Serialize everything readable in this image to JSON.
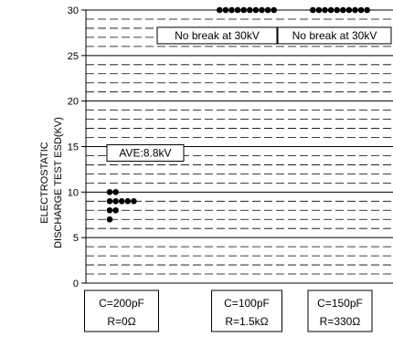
{
  "chart_data": {
    "type": "scatter",
    "ylabel_lines": [
      "ELECTROSTATIC",
      "DISCHARGE TEST ESD(KV)"
    ],
    "ylim": [
      0,
      30
    ],
    "y_ticks": [
      "0",
      "5",
      "10",
      "15",
      "20",
      "25",
      "30"
    ],
    "grid": "dashed minor lines every 1 kV, solid major lines every 5 kV",
    "categories": [
      {
        "line1": "C=200pF",
        "line2": "R=0Ω"
      },
      {
        "line1": "C=100pF",
        "line2": "R=1.5kΩ"
      },
      {
        "line1": "C=150pF",
        "line2": "R=330Ω"
      }
    ],
    "series": [
      {
        "values": [
          {
            "category": 0,
            "y": 10,
            "count": 2
          },
          {
            "category": 0,
            "y": 9,
            "count": 5
          },
          {
            "category": 0,
            "y": 8,
            "count": 2
          },
          {
            "category": 0,
            "y": 7,
            "count": 1
          },
          {
            "category": 1,
            "y": 30,
            "count": 10
          },
          {
            "category": 2,
            "y": 30,
            "count": 10
          }
        ]
      }
    ],
    "annotations": [
      {
        "text": "AVE:8.8kV",
        "category": 0,
        "y": 14.3
      },
      {
        "text": "No break at 30kV",
        "category": 1,
        "y": 27.2
      },
      {
        "text": "No break at 30kV",
        "category": 2,
        "y": 27.2
      }
    ],
    "marker_color": "#000000"
  }
}
